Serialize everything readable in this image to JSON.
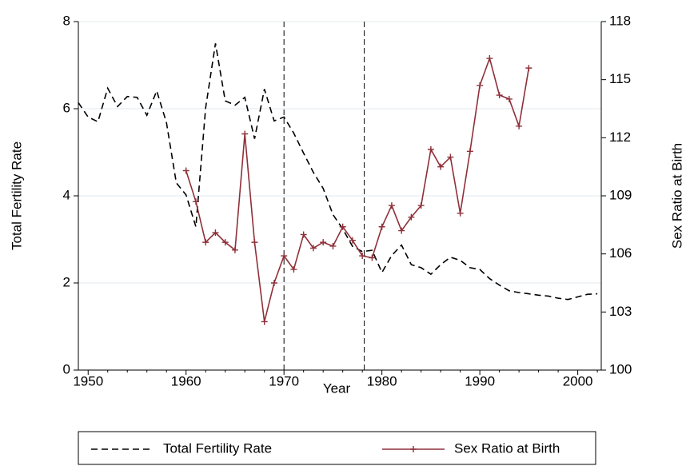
{
  "chart_data": {
    "type": "line",
    "xlabel": "Year",
    "ylabel": "Total Fertility Rate",
    "y2label": "Sex Ratio at Birth",
    "xlim": [
      1949,
      2002.4
    ],
    "xticks": [
      1950,
      1960,
      1970,
      1980,
      1990,
      2000
    ],
    "xminorticks": [
      1952,
      1954,
      1956,
      1958,
      1962,
      1964,
      1966,
      1968,
      1972,
      1974,
      1976,
      1978,
      1982,
      1984,
      1986,
      1988,
      1992,
      1994,
      1996,
      1998,
      2002
    ],
    "ylim": [
      0,
      8
    ],
    "yticks": [
      0,
      2,
      4,
      6,
      8
    ],
    "y2lim": [
      100,
      118
    ],
    "y2ticks": [
      100,
      103,
      106,
      109,
      112,
      115,
      118
    ],
    "grid": true,
    "vlines": [
      1970,
      1978.2
    ],
    "series": [
      {
        "name": "Total Fertility Rate",
        "color": "#000000",
        "dash": true,
        "x": [
          1949,
          1950,
          1951,
          1952,
          1953,
          1954,
          1955,
          1956,
          1957,
          1958,
          1959,
          1960,
          1961,
          1962,
          1963,
          1964,
          1965,
          1966,
          1967,
          1968,
          1969,
          1970,
          1971,
          1972,
          1973,
          1974,
          1975,
          1976,
          1977,
          1978,
          1979,
          1980,
          1981,
          1982,
          1983,
          1984,
          1985,
          1986,
          1987,
          1988,
          1989,
          1990,
          1991,
          1992,
          1993,
          1994,
          1995,
          1996,
          1997,
          1998,
          1999,
          2000,
          2001,
          2002
        ],
        "values": [
          6.14,
          5.81,
          5.7,
          6.47,
          6.05,
          6.28,
          6.26,
          5.85,
          6.41,
          5.68,
          4.3,
          4.02,
          3.29,
          6.02,
          7.5,
          6.18,
          6.08,
          6.26,
          5.31,
          6.45,
          5.72,
          5.81,
          5.44,
          4.98,
          4.54,
          4.17,
          3.57,
          3.24,
          2.84,
          2.72,
          2.75,
          2.24,
          2.63,
          2.87,
          2.42,
          2.35,
          2.2,
          2.42,
          2.59,
          2.52,
          2.35,
          2.31,
          2.1,
          1.95,
          1.82,
          1.78,
          1.75,
          1.72,
          1.7,
          1.65,
          1.62,
          1.68,
          1.74,
          1.75
        ]
      },
      {
        "name": "Sex Ratio at Birth",
        "color": "#8e3039",
        "axis": "y2",
        "markers": true,
        "x": [
          1960,
          1961,
          1962,
          1963,
          1964,
          1965,
          1966,
          1967,
          1968,
          1969,
          1970,
          1971,
          1972,
          1973,
          1974,
          1975,
          1976,
          1977,
          1978,
          1979,
          1980,
          1981,
          1982,
          1983,
          1984,
          1985,
          1986,
          1987,
          1988,
          1989,
          1990,
          1991,
          1992,
          1993,
          1994,
          1995
        ],
        "values": [
          110.3,
          108.7,
          106.6,
          107.1,
          106.6,
          106.2,
          112.2,
          106.6,
          102.5,
          104.5,
          105.9,
          105.2,
          107.0,
          106.3,
          106.6,
          106.4,
          107.4,
          106.7,
          105.9,
          105.8,
          107.4,
          108.5,
          107.2,
          107.9,
          108.5,
          111.4,
          110.5,
          111.0,
          108.1,
          111.3,
          114.7,
          116.1,
          114.2,
          114.0,
          112.6,
          115.6
        ]
      }
    ]
  }
}
